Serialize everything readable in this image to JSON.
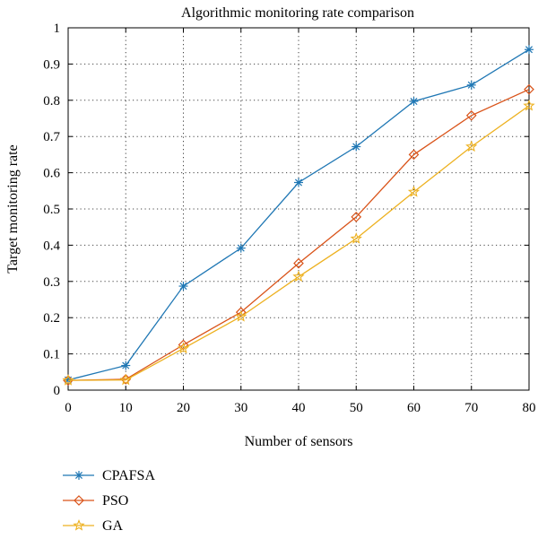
{
  "chart_data": {
    "type": "line",
    "title": "Algorithmic monitoring rate comparison",
    "xlabel": "Number of sensors",
    "ylabel": "Target monitoring rate",
    "x": [
      0,
      10,
      20,
      30,
      40,
      50,
      60,
      70,
      80
    ],
    "xlim": [
      0,
      80
    ],
    "ylim": [
      0,
      1
    ],
    "xticks": [
      "0",
      "10",
      "20",
      "30",
      "40",
      "50",
      "60",
      "70",
      "80"
    ],
    "yticks": [
      "0",
      "0.1",
      "0.2",
      "0.3",
      "0.4",
      "0.5",
      "0.6",
      "0.7",
      "0.8",
      "0.9",
      "1"
    ],
    "grid": true,
    "legend_position": "below",
    "series": [
      {
        "name": "CPAFSA",
        "color": "#1f77b4",
        "marker": "asterisk",
        "values": [
          0.028,
          0.068,
          0.287,
          0.392,
          0.573,
          0.672,
          0.797,
          0.842,
          0.94
        ]
      },
      {
        "name": "PSO",
        "color": "#d95319",
        "marker": "diamond",
        "values": [
          0.027,
          0.03,
          0.125,
          0.215,
          0.35,
          0.478,
          0.65,
          0.758,
          0.83
        ]
      },
      {
        "name": "GA",
        "color": "#edb120",
        "marker": "star",
        "values": [
          0.027,
          0.028,
          0.115,
          0.203,
          0.313,
          0.418,
          0.547,
          0.672,
          0.785
        ]
      }
    ]
  }
}
